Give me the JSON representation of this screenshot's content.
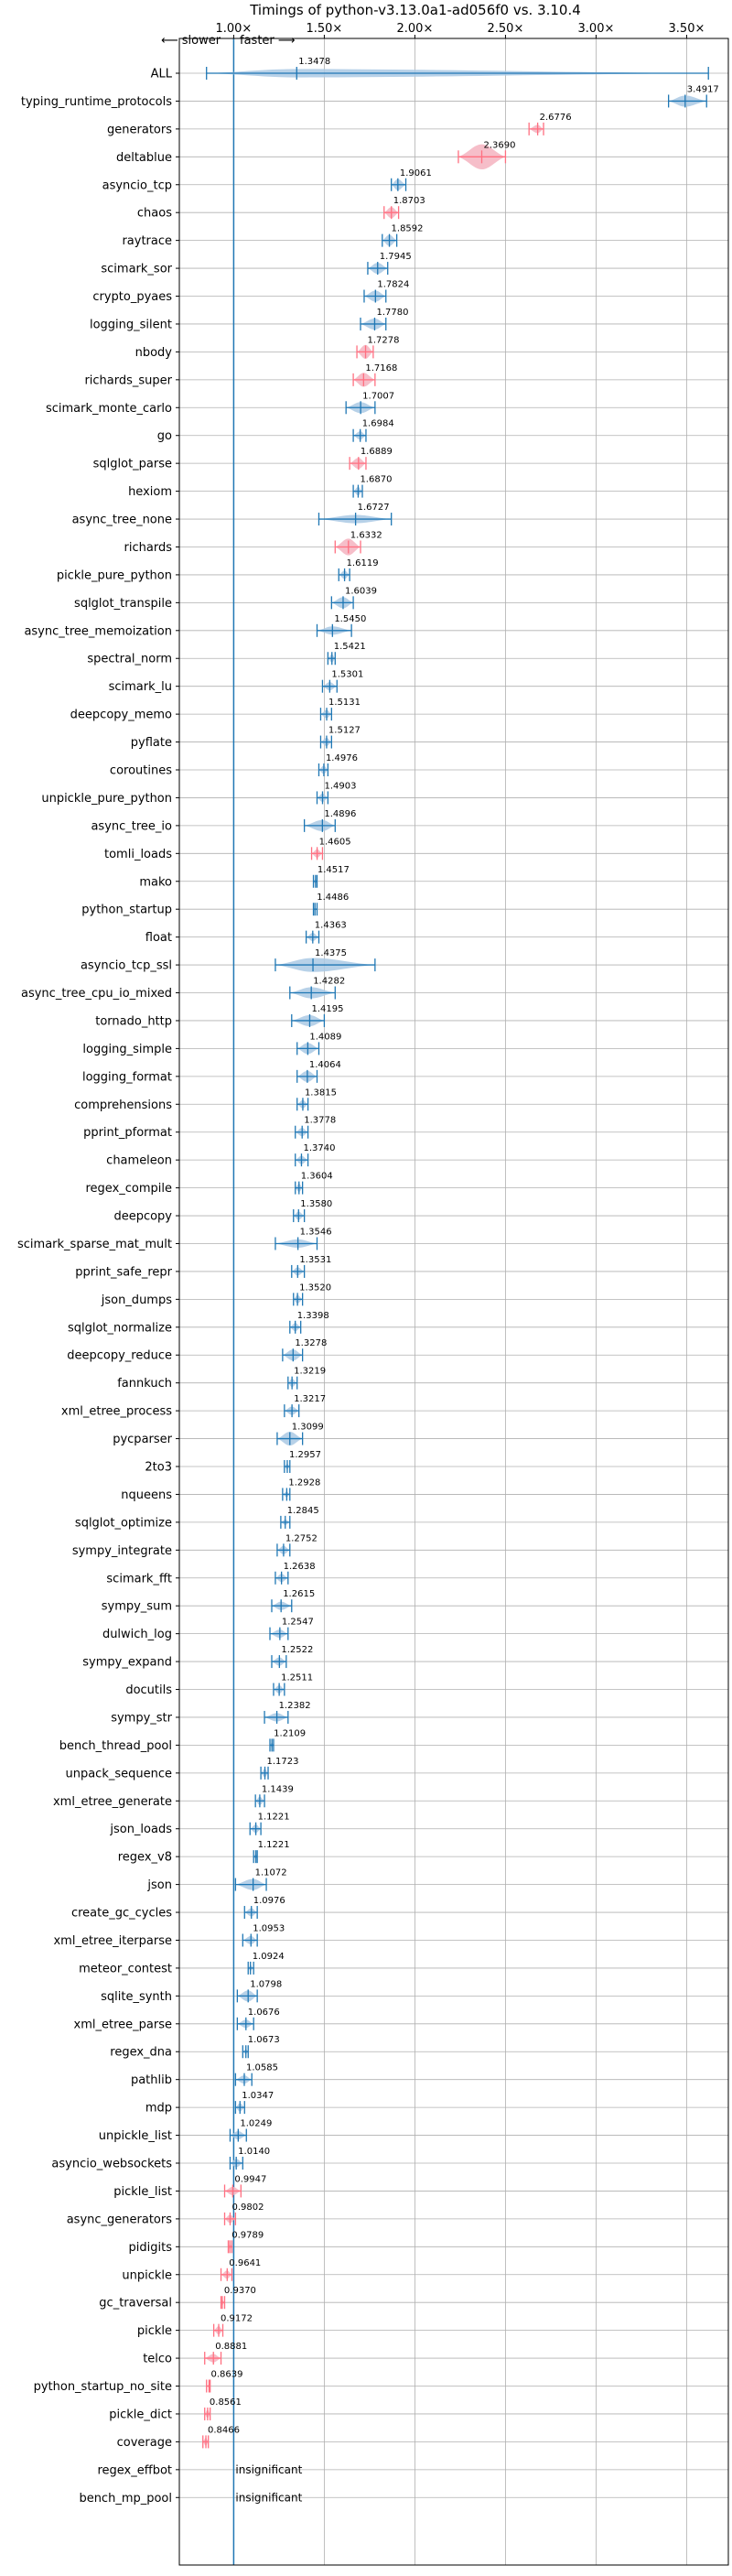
{
  "chart_data": {
    "type": "violin",
    "title": "Timings of python-v3.13.0a1-ad056f0 vs. 3.10.4",
    "direction_slower": "⟵ slower",
    "direction_faster": "faster ⟶",
    "x_ticks": [
      {
        "value": 1.0,
        "label": "1.00×"
      },
      {
        "value": 1.5,
        "label": "1.50×"
      },
      {
        "value": 2.0,
        "label": "2.00×"
      },
      {
        "value": 2.5,
        "label": "2.50×"
      },
      {
        "value": 3.0,
        "label": "3.00×"
      },
      {
        "value": 3.5,
        "label": "3.50×"
      }
    ],
    "xlim": [
      0.7,
      3.73
    ],
    "reference_line": 1.0,
    "colors": {
      "faster": "#1f77b4",
      "slower": "#ff6f80",
      "faster_fill": "#aac9e4",
      "slower_fill": "#f5b3bf",
      "grid": "#b0b0b0"
    },
    "benchmarks": [
      {
        "name": "ALL",
        "value": 1.3478,
        "label": "1.3478",
        "lo": 0.85,
        "hi": 3.62,
        "w": 0.3,
        "status": "faster"
      },
      {
        "name": "typing_runtime_protocols",
        "value": 3.4917,
        "label": "3.4917",
        "lo": 3.4,
        "hi": 3.61,
        "w": 0.4,
        "status": "faster"
      },
      {
        "name": "generators",
        "value": 2.6776,
        "label": "2.6776",
        "lo": 2.63,
        "hi": 2.71,
        "w": 0.3,
        "status": "slower"
      },
      {
        "name": "deltablue",
        "value": 2.369,
        "label": "2.3690",
        "lo": 2.24,
        "hi": 2.5,
        "w": 0.9,
        "status": "slower"
      },
      {
        "name": "asyncio_tcp",
        "value": 1.9061,
        "label": "1.9061",
        "lo": 1.87,
        "hi": 1.95,
        "w": 0.4,
        "status": "faster"
      },
      {
        "name": "chaos",
        "value": 1.8703,
        "label": "1.8703",
        "lo": 1.83,
        "hi": 1.91,
        "w": 0.4,
        "status": "slower"
      },
      {
        "name": "raytrace",
        "value": 1.8592,
        "label": "1.8592",
        "lo": 1.82,
        "hi": 1.9,
        "w": 0.4,
        "status": "faster"
      },
      {
        "name": "scimark_sor",
        "value": 1.7945,
        "label": "1.7945",
        "lo": 1.74,
        "hi": 1.85,
        "w": 0.4,
        "status": "faster"
      },
      {
        "name": "crypto_pyaes",
        "value": 1.7824,
        "label": "1.7824",
        "lo": 1.72,
        "hi": 1.84,
        "w": 0.4,
        "status": "faster"
      },
      {
        "name": "logging_silent",
        "value": 1.778,
        "label": "1.7780",
        "lo": 1.7,
        "hi": 1.84,
        "w": 0.4,
        "status": "faster"
      },
      {
        "name": "nbody",
        "value": 1.7278,
        "label": "1.7278",
        "lo": 1.68,
        "hi": 1.77,
        "w": 0.5,
        "status": "slower"
      },
      {
        "name": "richards_super",
        "value": 1.7168,
        "label": "1.7168",
        "lo": 1.66,
        "hi": 1.78,
        "w": 0.5,
        "status": "slower"
      },
      {
        "name": "scimark_monte_carlo",
        "value": 1.7007,
        "label": "1.7007",
        "lo": 1.62,
        "hi": 1.78,
        "w": 0.4,
        "status": "faster"
      },
      {
        "name": "go",
        "value": 1.6984,
        "label": "1.6984",
        "lo": 1.66,
        "hi": 1.73,
        "w": 0.3,
        "status": "faster"
      },
      {
        "name": "sqlglot_parse",
        "value": 1.6889,
        "label": "1.6889",
        "lo": 1.64,
        "hi": 1.73,
        "w": 0.4,
        "status": "slower"
      },
      {
        "name": "hexiom",
        "value": 1.687,
        "label": "1.6870",
        "lo": 1.66,
        "hi": 1.71,
        "w": 0.3,
        "status": "faster"
      },
      {
        "name": "async_tree_none",
        "value": 1.6727,
        "label": "1.6727",
        "lo": 1.47,
        "hi": 1.87,
        "w": 0.3,
        "status": "faster"
      },
      {
        "name": "richards",
        "value": 1.6332,
        "label": "1.6332",
        "lo": 1.56,
        "hi": 1.7,
        "w": 0.6,
        "status": "slower"
      },
      {
        "name": "pickle_pure_python",
        "value": 1.6119,
        "label": "1.6119",
        "lo": 1.58,
        "hi": 1.64,
        "w": 0.3,
        "status": "faster"
      },
      {
        "name": "sqlglot_transpile",
        "value": 1.6039,
        "label": "1.6039",
        "lo": 1.54,
        "hi": 1.66,
        "w": 0.4,
        "status": "faster"
      },
      {
        "name": "async_tree_memoization",
        "value": 1.545,
        "label": "1.5450",
        "lo": 1.46,
        "hi": 1.65,
        "w": 0.3,
        "status": "faster"
      },
      {
        "name": "spectral_norm",
        "value": 1.5421,
        "label": "1.5421",
        "lo": 1.52,
        "hi": 1.56,
        "w": 0.3,
        "status": "faster"
      },
      {
        "name": "scimark_lu",
        "value": 1.5301,
        "label": "1.5301",
        "lo": 1.49,
        "hi": 1.57,
        "w": 0.3,
        "status": "faster"
      },
      {
        "name": "deepcopy_memo",
        "value": 1.5131,
        "label": "1.5131",
        "lo": 1.48,
        "hi": 1.54,
        "w": 0.3,
        "status": "faster"
      },
      {
        "name": "pyflate",
        "value": 1.5127,
        "label": "1.5127",
        "lo": 1.48,
        "hi": 1.54,
        "w": 0.3,
        "status": "faster"
      },
      {
        "name": "coroutines",
        "value": 1.4976,
        "label": "1.4976",
        "lo": 1.47,
        "hi": 1.52,
        "w": 0.3,
        "status": "faster"
      },
      {
        "name": "unpickle_pure_python",
        "value": 1.4903,
        "label": "1.4903",
        "lo": 1.46,
        "hi": 1.52,
        "w": 0.3,
        "status": "faster"
      },
      {
        "name": "async_tree_io",
        "value": 1.4896,
        "label": "1.4896",
        "lo": 1.39,
        "hi": 1.56,
        "w": 0.4,
        "status": "faster"
      },
      {
        "name": "tomli_loads",
        "value": 1.4605,
        "label": "1.4605",
        "lo": 1.43,
        "hi": 1.49,
        "w": 0.3,
        "status": "slower"
      },
      {
        "name": "mako",
        "value": 1.4517,
        "label": "1.4517",
        "lo": 1.44,
        "hi": 1.46,
        "w": 0.2,
        "status": "faster"
      },
      {
        "name": "python_startup",
        "value": 1.4486,
        "label": "1.4486",
        "lo": 1.44,
        "hi": 1.46,
        "w": 0.1,
        "status": "faster"
      },
      {
        "name": "float",
        "value": 1.4363,
        "label": "1.4363",
        "lo": 1.4,
        "hi": 1.47,
        "w": 0.3,
        "status": "faster"
      },
      {
        "name": "asyncio_tcp_ssl",
        "value": 1.4375,
        "label": "1.4375",
        "lo": 1.23,
        "hi": 1.78,
        "w": 0.5,
        "status": "faster"
      },
      {
        "name": "async_tree_cpu_io_mixed",
        "value": 1.4282,
        "label": "1.4282",
        "lo": 1.31,
        "hi": 1.56,
        "w": 0.4,
        "status": "faster"
      },
      {
        "name": "tornado_http",
        "value": 1.4195,
        "label": "1.4195",
        "lo": 1.32,
        "hi": 1.5,
        "w": 0.4,
        "status": "faster"
      },
      {
        "name": "logging_simple",
        "value": 1.4089,
        "label": "1.4089",
        "lo": 1.35,
        "hi": 1.47,
        "w": 0.4,
        "status": "faster"
      },
      {
        "name": "logging_format",
        "value": 1.4064,
        "label": "1.4064",
        "lo": 1.35,
        "hi": 1.46,
        "w": 0.4,
        "status": "faster"
      },
      {
        "name": "comprehensions",
        "value": 1.3815,
        "label": "1.3815",
        "lo": 1.35,
        "hi": 1.41,
        "w": 0.3,
        "status": "faster"
      },
      {
        "name": "pprint_pformat",
        "value": 1.3778,
        "label": "1.3778",
        "lo": 1.34,
        "hi": 1.41,
        "w": 0.3,
        "status": "faster"
      },
      {
        "name": "chameleon",
        "value": 1.374,
        "label": "1.3740",
        "lo": 1.34,
        "hi": 1.41,
        "w": 0.3,
        "status": "faster"
      },
      {
        "name": "regex_compile",
        "value": 1.3604,
        "label": "1.3604",
        "lo": 1.34,
        "hi": 1.38,
        "w": 0.3,
        "status": "faster"
      },
      {
        "name": "deepcopy",
        "value": 1.358,
        "label": "1.3580",
        "lo": 1.33,
        "hi": 1.39,
        "w": 0.3,
        "status": "faster"
      },
      {
        "name": "scimark_sparse_mat_mult",
        "value": 1.3546,
        "label": "1.3546",
        "lo": 1.23,
        "hi": 1.46,
        "w": 0.3,
        "status": "faster"
      },
      {
        "name": "pprint_safe_repr",
        "value": 1.3531,
        "label": "1.3531",
        "lo": 1.32,
        "hi": 1.39,
        "w": 0.3,
        "status": "faster"
      },
      {
        "name": "json_dumps",
        "value": 1.352,
        "label": "1.3520",
        "lo": 1.33,
        "hi": 1.38,
        "w": 0.3,
        "status": "faster"
      },
      {
        "name": "sqlglot_normalize",
        "value": 1.3398,
        "label": "1.3398",
        "lo": 1.31,
        "hi": 1.37,
        "w": 0.3,
        "status": "faster"
      },
      {
        "name": "deepcopy_reduce",
        "value": 1.3278,
        "label": "1.3278",
        "lo": 1.27,
        "hi": 1.38,
        "w": 0.4,
        "status": "faster"
      },
      {
        "name": "fannkuch",
        "value": 1.3219,
        "label": "1.3219",
        "lo": 1.3,
        "hi": 1.35,
        "w": 0.3,
        "status": "faster"
      },
      {
        "name": "xml_etree_process",
        "value": 1.3217,
        "label": "1.3217",
        "lo": 1.28,
        "hi": 1.36,
        "w": 0.3,
        "status": "faster"
      },
      {
        "name": "pycparser",
        "value": 1.3099,
        "label": "1.3099",
        "lo": 1.24,
        "hi": 1.38,
        "w": 0.5,
        "status": "faster"
      },
      {
        "name": "2to3",
        "value": 1.2957,
        "label": "1.2957",
        "lo": 1.28,
        "hi": 1.31,
        "w": 0.2,
        "status": "faster"
      },
      {
        "name": "nqueens",
        "value": 1.2928,
        "label": "1.2928",
        "lo": 1.27,
        "hi": 1.31,
        "w": 0.2,
        "status": "faster"
      },
      {
        "name": "sqlglot_optimize",
        "value": 1.2845,
        "label": "1.2845",
        "lo": 1.26,
        "hi": 1.31,
        "w": 0.2,
        "status": "faster"
      },
      {
        "name": "sympy_integrate",
        "value": 1.2752,
        "label": "1.2752",
        "lo": 1.24,
        "hi": 1.31,
        "w": 0.3,
        "status": "faster"
      },
      {
        "name": "scimark_fft",
        "value": 1.2638,
        "label": "1.2638",
        "lo": 1.23,
        "hi": 1.3,
        "w": 0.3,
        "status": "faster"
      },
      {
        "name": "sympy_sum",
        "value": 1.2615,
        "label": "1.2615",
        "lo": 1.21,
        "hi": 1.32,
        "w": 0.3,
        "status": "faster"
      },
      {
        "name": "dulwich_log",
        "value": 1.2547,
        "label": "1.2547",
        "lo": 1.2,
        "hi": 1.3,
        "w": 0.3,
        "status": "faster"
      },
      {
        "name": "sympy_expand",
        "value": 1.2522,
        "label": "1.2522",
        "lo": 1.21,
        "hi": 1.29,
        "w": 0.3,
        "status": "faster"
      },
      {
        "name": "docutils",
        "value": 1.2511,
        "label": "1.2511",
        "lo": 1.22,
        "hi": 1.28,
        "w": 0.3,
        "status": "faster"
      },
      {
        "name": "sympy_str",
        "value": 1.2382,
        "label": "1.2382",
        "lo": 1.17,
        "hi": 1.3,
        "w": 0.3,
        "status": "faster"
      },
      {
        "name": "bench_thread_pool",
        "value": 1.2109,
        "label": "1.2109",
        "lo": 1.2,
        "hi": 1.22,
        "w": 0.2,
        "status": "faster"
      },
      {
        "name": "unpack_sequence",
        "value": 1.1723,
        "label": "1.1723",
        "lo": 1.15,
        "hi": 1.19,
        "w": 0.3,
        "status": "faster"
      },
      {
        "name": "xml_etree_generate",
        "value": 1.1439,
        "label": "1.1439",
        "lo": 1.12,
        "hi": 1.17,
        "w": 0.3,
        "status": "faster"
      },
      {
        "name": "json_loads",
        "value": 1.1221,
        "label": "1.1221",
        "lo": 1.09,
        "hi": 1.15,
        "w": 0.3,
        "status": "faster"
      },
      {
        "name": "regex_v8",
        "value": 1.1221,
        "label": "1.1221",
        "lo": 1.11,
        "hi": 1.13,
        "w": 0.2,
        "status": "faster"
      },
      {
        "name": "json",
        "value": 1.1072,
        "label": "1.1072",
        "lo": 1.01,
        "hi": 1.18,
        "w": 0.4,
        "status": "faster"
      },
      {
        "name": "create_gc_cycles",
        "value": 1.0976,
        "label": "1.0976",
        "lo": 1.06,
        "hi": 1.13,
        "w": 0.3,
        "status": "faster"
      },
      {
        "name": "xml_etree_iterparse",
        "value": 1.0953,
        "label": "1.0953",
        "lo": 1.05,
        "hi": 1.13,
        "w": 0.3,
        "status": "faster"
      },
      {
        "name": "meteor_contest",
        "value": 1.0924,
        "label": "1.0924",
        "lo": 1.08,
        "hi": 1.11,
        "w": 0.2,
        "status": "faster"
      },
      {
        "name": "sqlite_synth",
        "value": 1.0798,
        "label": "1.0798",
        "lo": 1.02,
        "hi": 1.13,
        "w": 0.4,
        "status": "faster"
      },
      {
        "name": "xml_etree_parse",
        "value": 1.0676,
        "label": "1.0676",
        "lo": 1.02,
        "hi": 1.11,
        "w": 0.3,
        "status": "faster"
      },
      {
        "name": "regex_dna",
        "value": 1.0673,
        "label": "1.0673",
        "lo": 1.05,
        "hi": 1.08,
        "w": 0.2,
        "status": "faster"
      },
      {
        "name": "pathlib",
        "value": 1.0585,
        "label": "1.0585",
        "lo": 1.01,
        "hi": 1.1,
        "w": 0.3,
        "status": "faster"
      },
      {
        "name": "mdp",
        "value": 1.0347,
        "label": "1.0347",
        "lo": 1.01,
        "hi": 1.06,
        "w": 0.3,
        "status": "faster"
      },
      {
        "name": "unpickle_list",
        "value": 1.0249,
        "label": "1.0249",
        "lo": 0.98,
        "hi": 1.07,
        "w": 0.3,
        "status": "faster"
      },
      {
        "name": "asyncio_websockets",
        "value": 1.014,
        "label": "1.0140",
        "lo": 0.98,
        "hi": 1.05,
        "w": 0.3,
        "status": "faster"
      },
      {
        "name": "pickle_list",
        "value": 0.9947,
        "label": "0.9947",
        "lo": 0.95,
        "hi": 1.04,
        "w": 0.3,
        "status": "slower"
      },
      {
        "name": "async_generators",
        "value": 0.9802,
        "label": "0.9802",
        "lo": 0.95,
        "hi": 1.01,
        "w": 0.3,
        "status": "slower"
      },
      {
        "name": "pidigits",
        "value": 0.9789,
        "label": "0.9789",
        "lo": 0.97,
        "hi": 0.99,
        "w": 0.2,
        "status": "slower"
      },
      {
        "name": "unpickle",
        "value": 0.9641,
        "label": "0.9641",
        "lo": 0.93,
        "hi": 0.99,
        "w": 0.3,
        "status": "slower"
      },
      {
        "name": "gc_traversal",
        "value": 0.937,
        "label": "0.9370",
        "lo": 0.93,
        "hi": 0.95,
        "w": 0.2,
        "status": "slower"
      },
      {
        "name": "pickle",
        "value": 0.9172,
        "label": "0.9172",
        "lo": 0.89,
        "hi": 0.94,
        "w": 0.3,
        "status": "slower"
      },
      {
        "name": "telco",
        "value": 0.8881,
        "label": "0.8881",
        "lo": 0.84,
        "hi": 0.93,
        "w": 0.3,
        "status": "slower"
      },
      {
        "name": "python_startup_no_site",
        "value": 0.8639,
        "label": "0.8639",
        "lo": 0.85,
        "hi": 0.87,
        "w": 0.1,
        "status": "slower"
      },
      {
        "name": "pickle_dict",
        "value": 0.8561,
        "label": "0.8561",
        "lo": 0.84,
        "hi": 0.87,
        "w": 0.3,
        "status": "slower"
      },
      {
        "name": "coverage",
        "value": 0.8466,
        "label": "0.8466",
        "lo": 0.83,
        "hi": 0.86,
        "w": 0.3,
        "status": "slower"
      },
      {
        "name": "regex_effbot",
        "value": null,
        "label": "insignificant",
        "status": "insignificant"
      },
      {
        "name": "bench_mp_pool",
        "value": null,
        "label": "insignificant",
        "status": "insignificant"
      }
    ]
  }
}
